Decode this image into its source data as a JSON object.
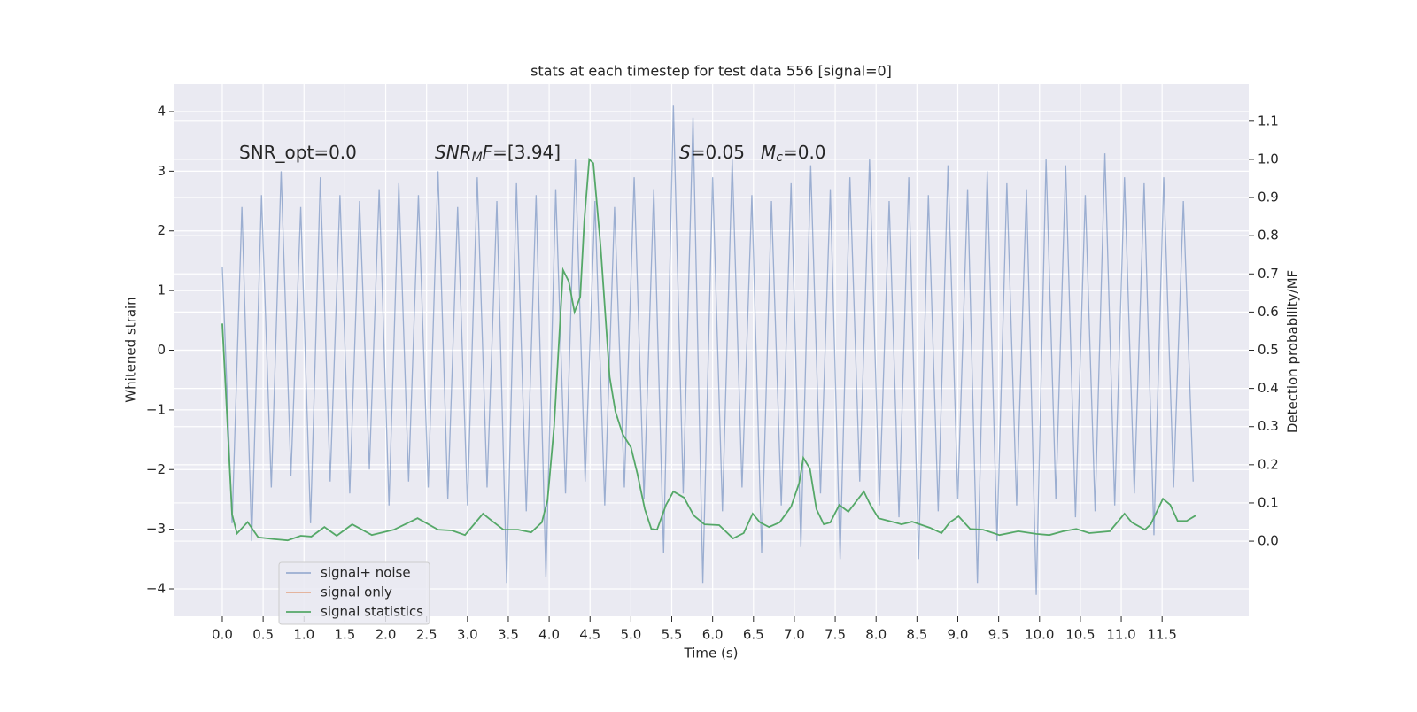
{
  "chart_data": {
    "type": "line",
    "title": "stats at each timestep for test data 556 [signal=0]",
    "x_label": "Time (s)",
    "y_label": "Whitened strain",
    "y2_label": "Detection probability/MF",
    "xlim": [
      -0.585,
      12.56
    ],
    "ylim": [
      -4.46,
      4.46
    ],
    "y2lim": [
      -0.197,
      1.197
    ],
    "grid": true,
    "legend": "lower left",
    "background": "#eaeaf2",
    "xticks": [
      {
        "value": 0,
        "label": "0.0"
      },
      0.5,
      {
        "value": 1,
        "label": "1.0"
      },
      1.5,
      {
        "value": 2,
        "label": "2.0"
      },
      2.5,
      {
        "value": 3,
        "label": "3.0"
      },
      3.5,
      {
        "value": 4,
        "label": "4.0"
      },
      4.5,
      {
        "value": 5,
        "label": "5.0"
      },
      5.5,
      {
        "value": 6,
        "label": "6.0"
      },
      6.5,
      {
        "value": 7,
        "label": "7.0"
      },
      7.5,
      {
        "value": 8,
        "label": "8.0"
      },
      8.5,
      {
        "value": 9,
        "label": "9.0"
      },
      9.5,
      {
        "value": 10,
        "label": "10.0"
      },
      10.5,
      {
        "value": 11,
        "label": "11.0"
      },
      11.5
    ],
    "yticks": [
      {
        "value": -4,
        "label": "−4"
      },
      {
        "value": -3,
        "label": "−3"
      },
      {
        "value": -2,
        "label": "−2"
      },
      {
        "value": -1,
        "label": "−1"
      },
      0,
      1,
      2,
      3,
      4
    ],
    "y2ticks": [
      {
        "value": 0,
        "label": "0.0"
      },
      0.1,
      0.2,
      0.3,
      0.4,
      0.5,
      0.6,
      0.7,
      0.8,
      0.9,
      {
        "value": 1,
        "label": "1.0"
      },
      1.1
    ],
    "annotations": [
      [
        {
          "text": "SNR_opt=0.0"
        }
      ],
      [
        {
          "text": "SNR",
          "style": "italic"
        },
        {
          "text": "M",
          "style": "italic-sub"
        },
        {
          "text": "F",
          "style": "italic"
        },
        {
          "text": "=[3.94]"
        }
      ],
      [
        {
          "text": "S",
          "style": "italic"
        },
        {
          "text": "=0.05"
        }
      ],
      [
        {
          "text": "M",
          "style": "italic"
        },
        {
          "text": "c",
          "style": "italic-sub"
        },
        {
          "text": "=0.0"
        }
      ]
    ],
    "series": [
      {
        "name": "signal+ noise",
        "color": "#4c72b0",
        "opacity": 0.5,
        "x": [
          0,
          0.12,
          0.24,
          0.36,
          0.48,
          0.6,
          0.72,
          0.84,
          0.96,
          1.08,
          1.2,
          1.32,
          1.44,
          1.56,
          1.68,
          1.8,
          1.92,
          2.04,
          2.16,
          2.28,
          2.4,
          2.52,
          2.64,
          2.76,
          2.88,
          3,
          3.12,
          3.24,
          3.36,
          3.48,
          3.6,
          3.72,
          3.84,
          3.96,
          4.08,
          4.2,
          4.32,
          4.44,
          4.56,
          4.68,
          4.8,
          4.92,
          5.04,
          5.16,
          5.28,
          5.4,
          5.52,
          5.64,
          5.76,
          5.88,
          6,
          6.12,
          6.24,
          6.36,
          6.48,
          6.6,
          6.72,
          6.84,
          6.96,
          7.08,
          7.2,
          7.32,
          7.44,
          7.56,
          7.68,
          7.8,
          7.92,
          8.04,
          8.16,
          8.28,
          8.4,
          8.52,
          8.64,
          8.76,
          8.88,
          9,
          9.12,
          9.24,
          9.36,
          9.48,
          9.6,
          9.72,
          9.84,
          9.96,
          10.08,
          10.2,
          10.32,
          10.44,
          10.56,
          10.68,
          10.8,
          10.92,
          11.04,
          11.16,
          11.28,
          11.4,
          11.52,
          11.64,
          11.76,
          11.88
        ],
        "values": [
          1.4,
          -2.9,
          2.4,
          -3.2,
          2.6,
          -2.3,
          3.0,
          -2.1,
          2.4,
          -2.9,
          2.9,
          -2.2,
          2.6,
          -2.4,
          2.5,
          -2.0,
          2.7,
          -2.6,
          2.8,
          -2.2,
          2.6,
          -2.3,
          3.0,
          -2.5,
          2.4,
          -2.6,
          2.9,
          -2.3,
          2.5,
          -3.9,
          2.8,
          -2.7,
          2.6,
          -3.8,
          2.7,
          -2.4,
          3.2,
          -2.2,
          2.5,
          -2.6,
          2.4,
          -2.3,
          2.9,
          -2.5,
          2.7,
          -3.4,
          4.1,
          -2.4,
          3.9,
          -3.9,
          2.9,
          -2.7,
          3.2,
          -2.3,
          2.6,
          -3.4,
          2.5,
          -2.6,
          2.8,
          -3.3,
          3.1,
          -2.4,
          2.7,
          -3.5,
          2.9,
          -2.2,
          3.2,
          -2.6,
          2.5,
          -2.8,
          2.9,
          -3.5,
          2.6,
          -2.7,
          3.1,
          -2.5,
          2.7,
          -3.9,
          3.0,
          -3.2,
          2.8,
          -2.6,
          2.7,
          -4.1,
          3.2,
          -2.5,
          3.1,
          -2.8,
          2.6,
          -2.7,
          3.3,
          -2.6,
          2.9,
          -2.4,
          2.8,
          -3.1,
          2.9,
          -2.3,
          2.5,
          -2.2
        ]
      },
      {
        "name": "signal only",
        "color": "#dd8452",
        "opacity": 0.6,
        "x": [],
        "values": []
      },
      {
        "name": "signal statistics",
        "color": "#55a868",
        "opacity": 1,
        "axis": "y2",
        "x": [
          0,
          0.12,
          0.18,
          0.31,
          0.44,
          0.64,
          0.8,
          0.96,
          1.09,
          1.25,
          1.4,
          1.59,
          1.83,
          2.1,
          2.39,
          2.64,
          2.81,
          2.97,
          3.19,
          3.3,
          3.44,
          3.62,
          3.78,
          3.91,
          3.98,
          4.06,
          4.17,
          4.24,
          4.31,
          4.38,
          4.43,
          4.49,
          4.54,
          4.63,
          4.74,
          4.81,
          4.9,
          5.0,
          5.08,
          5.17,
          5.25,
          5.32,
          5.43,
          5.52,
          5.65,
          5.77,
          5.9,
          6.08,
          6.25,
          6.38,
          6.49,
          6.58,
          6.69,
          6.82,
          6.96,
          7.06,
          7.11,
          7.19,
          7.27,
          7.36,
          7.44,
          7.55,
          7.66,
          7.75,
          7.85,
          7.93,
          8.03,
          8.23,
          8.31,
          8.44,
          8.66,
          8.8,
          8.9,
          9.01,
          9.15,
          9.31,
          9.51,
          9.74,
          9.96,
          10.12,
          10.29,
          10.45,
          10.61,
          10.86,
          11.04,
          11.13,
          11.29,
          11.36,
          11.51,
          11.6,
          11.69,
          11.8,
          11.91
        ],
        "values": [
          0.57,
          0.07,
          0.02,
          0.05,
          0.01,
          0.005,
          0.002,
          0.014,
          0.012,
          0.037,
          0.014,
          0.044,
          0.016,
          0.03,
          0.06,
          0.03,
          0.028,
          0.016,
          0.072,
          0.053,
          0.03,
          0.03,
          0.023,
          0.049,
          0.107,
          0.3,
          0.71,
          0.68,
          0.6,
          0.64,
          0.84,
          1.0,
          0.99,
          0.77,
          0.43,
          0.34,
          0.28,
          0.246,
          0.176,
          0.084,
          0.032,
          0.03,
          0.095,
          0.13,
          0.114,
          0.067,
          0.044,
          0.042,
          0.007,
          0.021,
          0.072,
          0.049,
          0.037,
          0.049,
          0.09,
          0.153,
          0.218,
          0.19,
          0.084,
          0.044,
          0.049,
          0.095,
          0.077,
          0.102,
          0.13,
          0.095,
          0.06,
          0.049,
          0.044,
          0.051,
          0.035,
          0.021,
          0.049,
          0.065,
          0.032,
          0.03,
          0.016,
          0.026,
          0.019,
          0.016,
          0.026,
          0.032,
          0.021,
          0.026,
          0.072,
          0.049,
          0.03,
          0.044,
          0.111,
          0.095,
          0.053,
          0.053,
          0.067
        ]
      }
    ]
  }
}
